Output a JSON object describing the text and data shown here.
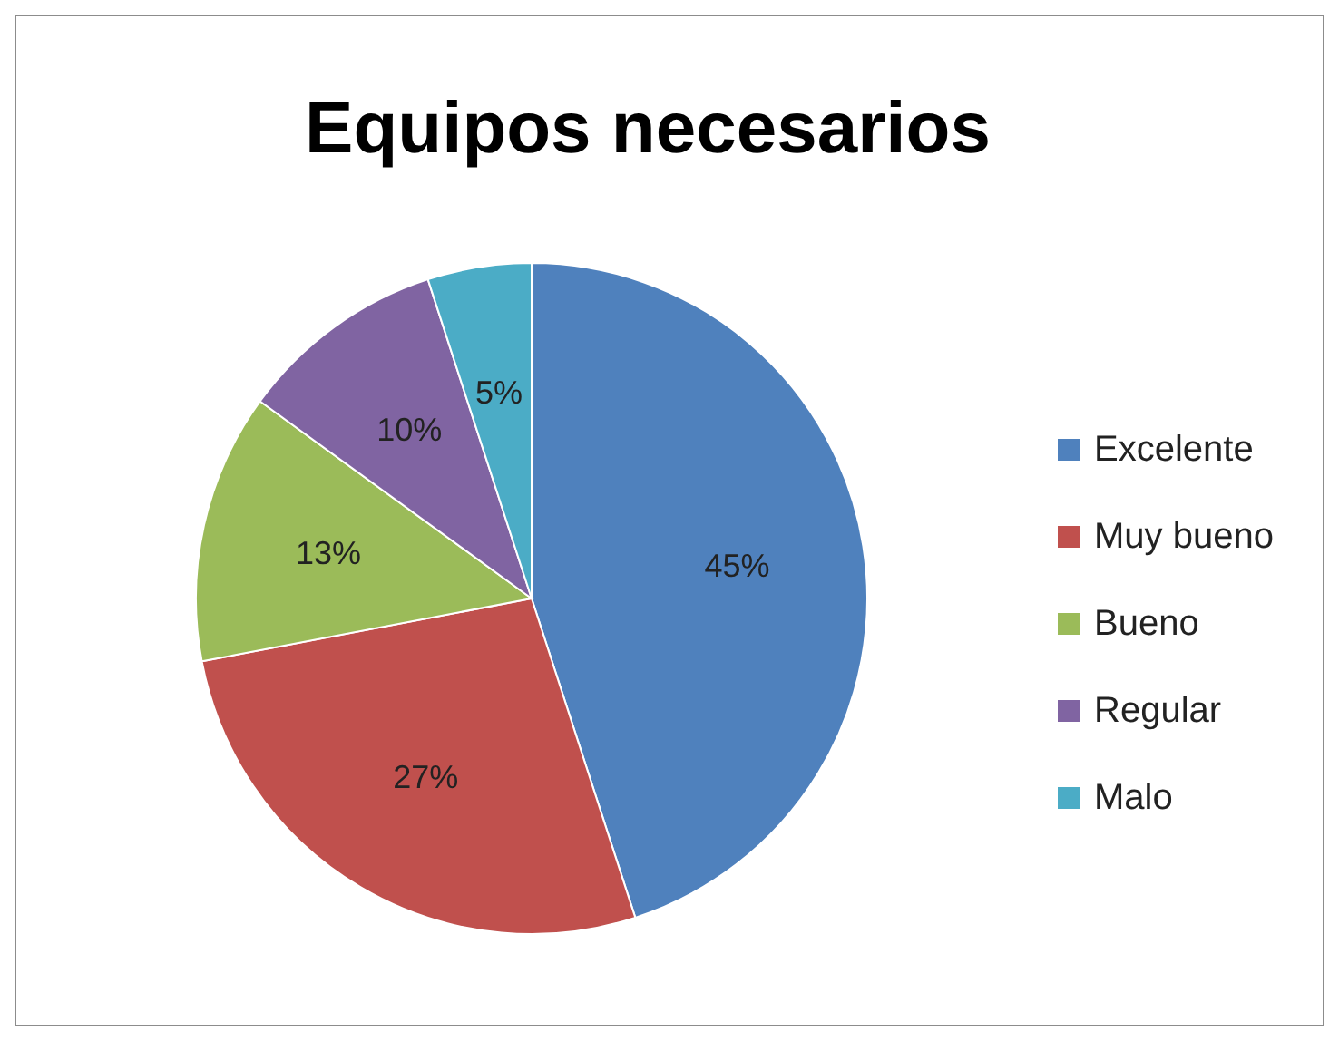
{
  "chart_data": {
    "type": "pie",
    "title": "Equipos necesarios",
    "categories": [
      "Excelente",
      "Muy bueno",
      "Bueno",
      "Regular",
      "Malo"
    ],
    "values": [
      45,
      27,
      13,
      10,
      5
    ],
    "value_labels": [
      "45%",
      "27%",
      "13%",
      "10%",
      "5%"
    ],
    "colors": [
      "#4f81bd",
      "#c0504d",
      "#9bbb59",
      "#8064a2",
      "#4bacc6"
    ],
    "legend": "right"
  }
}
